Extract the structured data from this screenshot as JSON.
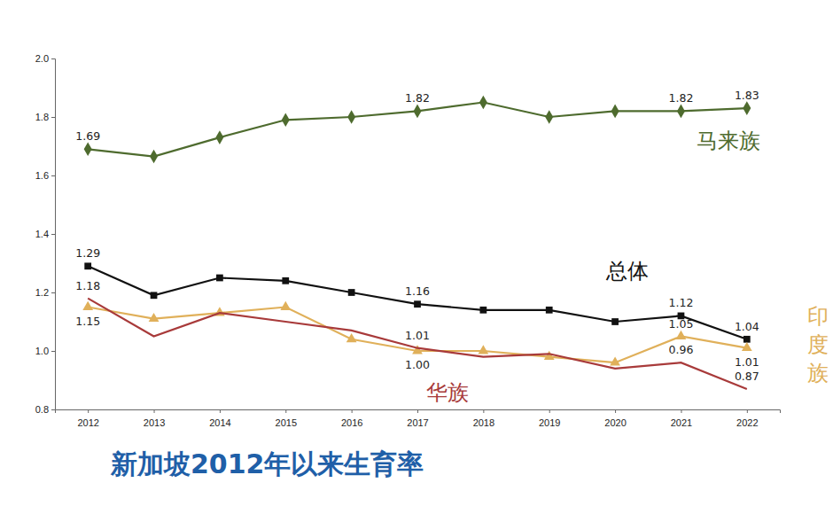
{
  "chart_data": {
    "type": "line",
    "title": "新加坡2012年以来生育率",
    "categories": [
      "2012",
      "2013",
      "2014",
      "2015",
      "2016",
      "2017",
      "2018",
      "2019",
      "2020",
      "2021",
      "2022"
    ],
    "ylim": [
      0.8,
      2.0
    ],
    "yticks": [
      0.8,
      {
        "value": 1.0,
        "label": "1.0"
      },
      1.2,
      1.4,
      1.6,
      1.8,
      {
        "value": 2.0,
        "label": "2.0"
      }
    ],
    "grid": false,
    "data_labels": true,
    "series": [
      {
        "name": "马来族",
        "color": "#4e6b2e",
        "marker": "diamond",
        "values": [
          1.69,
          1.665,
          1.73,
          1.79,
          1.8,
          1.82,
          1.85,
          1.8,
          1.82,
          1.82,
          1.83
        ],
        "value_labels": [
          "1.69",
          null,
          null,
          null,
          null,
          "1.82",
          null,
          null,
          null,
          "1.82",
          "1.83"
        ]
      },
      {
        "name": "总体",
        "color": "#111111",
        "marker": "square",
        "values": [
          1.29,
          1.19,
          1.25,
          1.24,
          1.2,
          1.16,
          1.14,
          1.14,
          1.1,
          1.12,
          1.04
        ],
        "value_labels": [
          "1.29",
          null,
          null,
          null,
          null,
          "1.16",
          null,
          null,
          null,
          "1.12",
          "1.04"
        ]
      },
      {
        "name": "印度族",
        "color": "#e0b05a",
        "marker": "triangle",
        "values": [
          1.15,
          1.11,
          1.13,
          1.15,
          1.04,
          1.0,
          1.0,
          0.98,
          0.96,
          1.05,
          1.01
        ],
        "value_labels": [
          "1.15",
          null,
          null,
          null,
          null,
          "1.00",
          null,
          null,
          null,
          "1.05",
          "1.01"
        ]
      },
      {
        "name": "华族",
        "color": "#a83a3a",
        "marker": "none",
        "values": [
          1.18,
          1.05,
          1.13,
          1.1,
          1.07,
          1.01,
          0.98,
          0.99,
          0.94,
          0.96,
          0.87
        ],
        "value_labels": [
          "1.18",
          null,
          null,
          null,
          null,
          "1.01",
          null,
          null,
          null,
          "0.96",
          "0.87"
        ]
      }
    ]
  }
}
